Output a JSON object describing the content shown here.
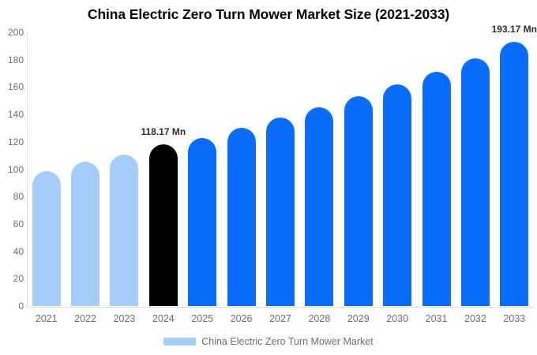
{
  "title": "China Electric Zero Turn Mower Market Size (2021-2033)",
  "legend": {
    "label": "China Electric Zero Turn Mower Market",
    "swatch_color": "#A4CDF9"
  },
  "colors": {
    "historical_bar": "#A4CDF9",
    "current_bar": "#000000",
    "forecast_bar": "#0A6CFA",
    "axis_line": "#E2E2E2",
    "tick_text": "#6E6E6E",
    "annotation_text": "#2D2D2D"
  },
  "chart_data": {
    "type": "bar",
    "title": "China Electric Zero Turn Mower Market Size (2021-2033)",
    "categories": [
      "2021",
      "2022",
      "2023",
      "2024",
      "2025",
      "2026",
      "2027",
      "2028",
      "2029",
      "2030",
      "2031",
      "2032",
      "2033"
    ],
    "values": [
      98.5,
      105.3,
      110.8,
      118.17,
      123.0,
      130.2,
      137.8,
      145.0,
      153.2,
      162.0,
      171.0,
      181.0,
      193.17
    ],
    "unit": "Mn",
    "bar_colors": [
      "#A4CDF9",
      "#A4CDF9",
      "#A4CDF9",
      "#000000",
      "#0A6CFA",
      "#0A6CFA",
      "#0A6CFA",
      "#0A6CFA",
      "#0A6CFA",
      "#0A6CFA",
      "#0A6CFA",
      "#0A6CFA",
      "#0A6CFA"
    ],
    "annotations": [
      {
        "category": "2024",
        "text": "118.17 Mn"
      },
      {
        "category": "2033",
        "text": "193.17 Mn"
      }
    ],
    "xlabel": "",
    "ylabel": "",
    "ylim": [
      0,
      200
    ],
    "ytick_step": 20,
    "grid": false,
    "legend_position": "bottom"
  }
}
